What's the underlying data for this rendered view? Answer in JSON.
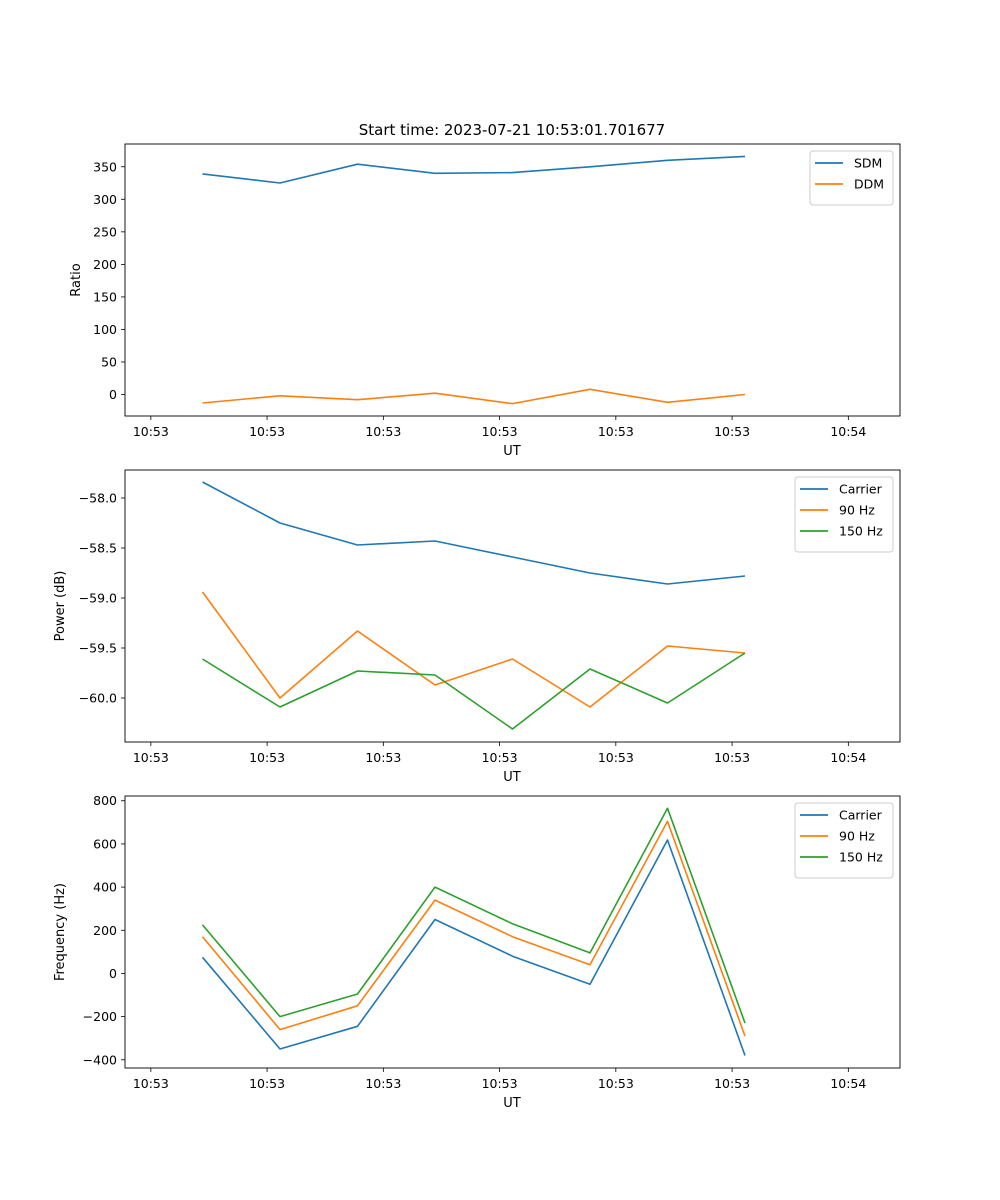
{
  "figure": {
    "title": "Start time: 2023-07-21 10:53:01.701677"
  },
  "chart_data": [
    {
      "type": "line",
      "title": "Start time: 2023-07-21 10:53:01.701677",
      "xlabel": "UT",
      "ylabel": "Ratio",
      "xlim": [
        0,
        3.0
      ],
      "ylim": [
        -33,
        385
      ],
      "x_ticks": [
        0.1,
        0.55,
        1.0,
        1.45,
        1.9,
        2.35,
        2.8
      ],
      "x_tick_labels": [
        "10:53",
        "10:53",
        "10:53",
        "10:53",
        "10:53",
        "10:53",
        "10:54"
      ],
      "y_ticks": [
        0,
        50,
        100,
        150,
        200,
        250,
        300,
        350
      ],
      "y_tick_labels": [
        "0",
        "50",
        "100",
        "150",
        "200",
        "250",
        "300",
        "350"
      ],
      "x": [
        0.3,
        0.6,
        0.9,
        1.2,
        1.5,
        1.8,
        2.1,
        2.4
      ],
      "series": [
        {
          "name": "SDM",
          "color": "#1f77b4",
          "values": [
            339,
            325,
            354,
            340,
            341,
            350,
            360,
            366
          ]
        },
        {
          "name": "DDM",
          "color": "#ff7f0e",
          "values": [
            -13,
            -2,
            -8,
            2,
            -14,
            8,
            -12,
            0
          ]
        }
      ],
      "legend": "top-right"
    },
    {
      "type": "line",
      "xlabel": "UT",
      "ylabel": "Power (dB)",
      "xlim": [
        0,
        3.0
      ],
      "ylim": [
        -60.44,
        -57.72
      ],
      "x_ticks": [
        0.1,
        0.55,
        1.0,
        1.45,
        1.9,
        2.35,
        2.8
      ],
      "x_tick_labels": [
        "10:53",
        "10:53",
        "10:53",
        "10:53",
        "10:53",
        "10:53",
        "10:54"
      ],
      "y_ticks": [
        -58.0,
        -58.5,
        -59.0,
        -59.5,
        -60.0
      ],
      "y_tick_labels": [
        "−58.0",
        "−58.5",
        "−59.0",
        "−59.5",
        "−60.0"
      ],
      "x": [
        0.3,
        0.6,
        0.9,
        1.2,
        1.5,
        1.8,
        2.1,
        2.4
      ],
      "series": [
        {
          "name": "Carrier",
          "color": "#1f77b4",
          "values": [
            -57.84,
            -58.25,
            -58.47,
            -58.43,
            -58.59,
            -58.75,
            -58.86,
            -58.78
          ]
        },
        {
          "name": "90 Hz",
          "color": "#ff7f0e",
          "values": [
            -58.94,
            -60.0,
            -59.33,
            -59.87,
            -59.61,
            -60.09,
            -59.48,
            -59.55
          ]
        },
        {
          "name": "150 Hz",
          "color": "#2ca02c",
          "values": [
            -59.61,
            -60.09,
            -59.73,
            -59.77,
            -60.31,
            -59.71,
            -60.05,
            -59.55
          ]
        }
      ],
      "legend": "top-right"
    },
    {
      "type": "line",
      "xlabel": "UT",
      "ylabel": "Frequency (Hz)",
      "xlim": [
        0,
        3.0
      ],
      "ylim": [
        -438,
        822
      ],
      "x_ticks": [
        0.1,
        0.55,
        1.0,
        1.45,
        1.9,
        2.35,
        2.8
      ],
      "x_tick_labels": [
        "10:53",
        "10:53",
        "10:53",
        "10:53",
        "10:53",
        "10:53",
        "10:54"
      ],
      "y_ticks": [
        -400,
        -200,
        0,
        200,
        400,
        600,
        800
      ],
      "y_tick_labels": [
        "−400",
        "−200",
        "0",
        "200",
        "400",
        "600",
        "800"
      ],
      "x": [
        0.3,
        0.6,
        0.9,
        1.2,
        1.5,
        1.8,
        2.1,
        2.4
      ],
      "series": [
        {
          "name": "Carrier",
          "color": "#1f77b4",
          "values": [
            75,
            -350,
            -245,
            250,
            80,
            -50,
            618,
            -380
          ]
        },
        {
          "name": "90 Hz",
          "color": "#ff7f0e",
          "values": [
            170,
            -260,
            -150,
            340,
            170,
            40,
            705,
            -290
          ]
        },
        {
          "name": "150 Hz",
          "color": "#2ca02c",
          "values": [
            225,
            -200,
            -95,
            400,
            230,
            95,
            765,
            -230
          ]
        }
      ],
      "legend": "top-right"
    }
  ]
}
